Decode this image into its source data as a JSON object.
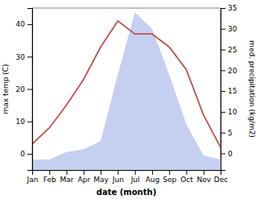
{
  "chart_data": {
    "type": "line",
    "xlabel": "date (month)",
    "ylabel": "max temp (C)",
    "y2label": "med. precipitation (kg/m2)",
    "categories": [
      "Jan",
      "Feb",
      "Mar",
      "Apr",
      "May",
      "Jun",
      "Jul",
      "Aug",
      "Sep",
      "Oct",
      "Nov",
      "Dec"
    ],
    "series": [
      {
        "type": "area",
        "axis": "y2",
        "color": "#c5cff0",
        "values": [
          -1.5,
          -1.5,
          0.3,
          1.0,
          3.0,
          19,
          34,
          30,
          19,
          7,
          -0.5,
          -1.5
        ]
      },
      {
        "type": "line",
        "color": "#c0504d",
        "values": [
          3,
          8,
          15,
          23,
          33,
          41,
          37,
          37,
          33,
          26,
          12,
          2
        ]
      }
    ],
    "ylim": [
      -5,
      45
    ],
    "yticks": [
      0,
      10,
      20,
      30,
      40
    ],
    "y2lim": [
      -4,
      35
    ],
    "y2ticks": [
      0,
      5,
      10,
      15,
      20,
      25,
      30,
      35
    ]
  }
}
